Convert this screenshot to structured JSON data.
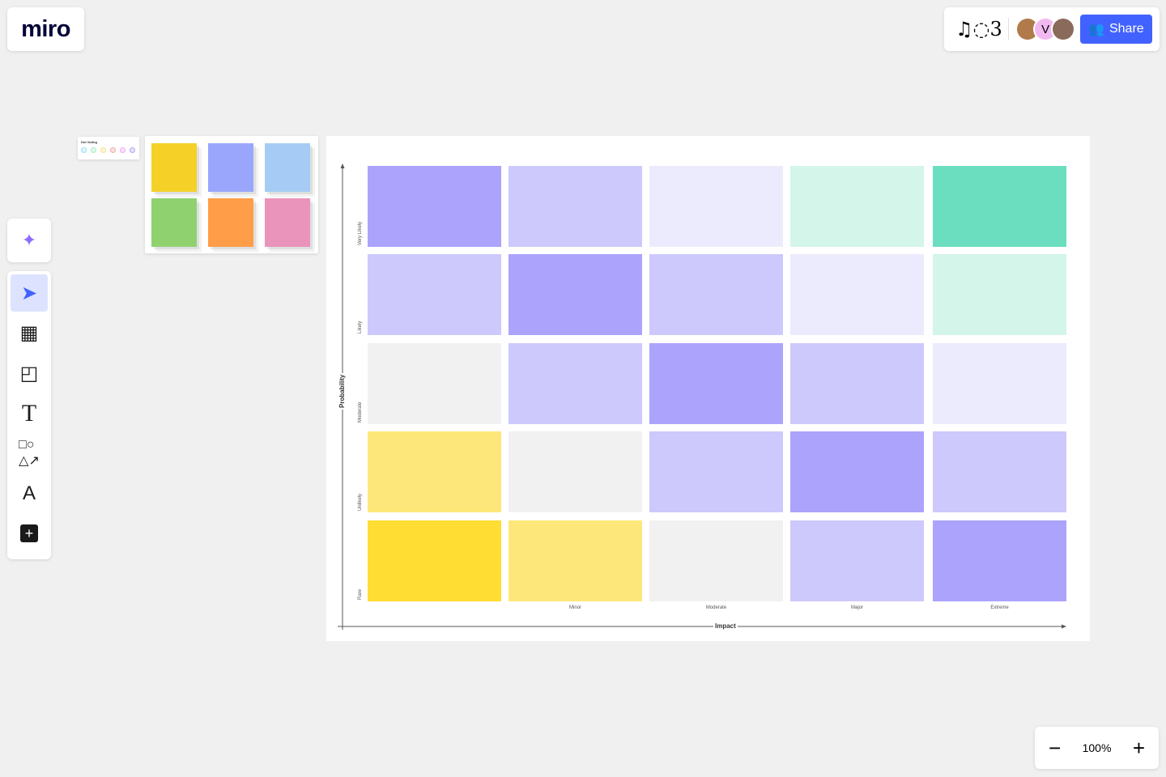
{
  "app": {
    "logo": "miro"
  },
  "topbar": {
    "collab_icon": "music-notes-icon",
    "avatar_initial": "V",
    "share_label": "Share"
  },
  "toolbar": {
    "items": [
      "ai-sparkle",
      "select",
      "templates",
      "sticky-note",
      "text",
      "shapes",
      "pen",
      "add"
    ]
  },
  "zoom": {
    "level": "100%",
    "minus": "−",
    "plus": "+"
  },
  "dot_voting": {
    "title": "Dot Voting",
    "dot_colors": [
      "#9ee0f5",
      "#a8ecc4",
      "#f7e28a",
      "#f5a8a8",
      "#f0a8f0",
      "#b0a8f5"
    ]
  },
  "stickies": {
    "colors": [
      "#f5d128",
      "#9aa6fc",
      "#a6ccf5",
      "#8fd16f",
      "#ff9d48",
      "#ea94bb"
    ]
  },
  "matrix": {
    "y_axis_label": "Probability",
    "x_axis_label": "Impact",
    "rows": [
      "Very Likely",
      "Likely",
      "Moderate",
      "Unlikely",
      "Rare"
    ],
    "columns": [
      "",
      "Minor",
      "Moderate",
      "Major",
      "Extreme"
    ],
    "palette": {
      "dp": "#aba3fc",
      "lp": "#cdc9fc",
      "vp": "#ecebfd",
      "lg": "#d3f5ea",
      "g": "#6bdec0",
      "gr": "#f1f1f2",
      "ly": "#fee77a",
      "y": "#ffdd33"
    },
    "cells": [
      [
        "dp",
        "lp",
        "vp",
        "lg",
        "g"
      ],
      [
        "lp",
        "dp",
        "lp",
        "vp",
        "lg"
      ],
      [
        "gr",
        "lp",
        "dp",
        "lp",
        "vp"
      ],
      [
        "ly",
        "gr",
        "lp",
        "dp",
        "lp"
      ],
      [
        "y",
        "ly",
        "gr",
        "lp",
        "dp"
      ]
    ]
  }
}
